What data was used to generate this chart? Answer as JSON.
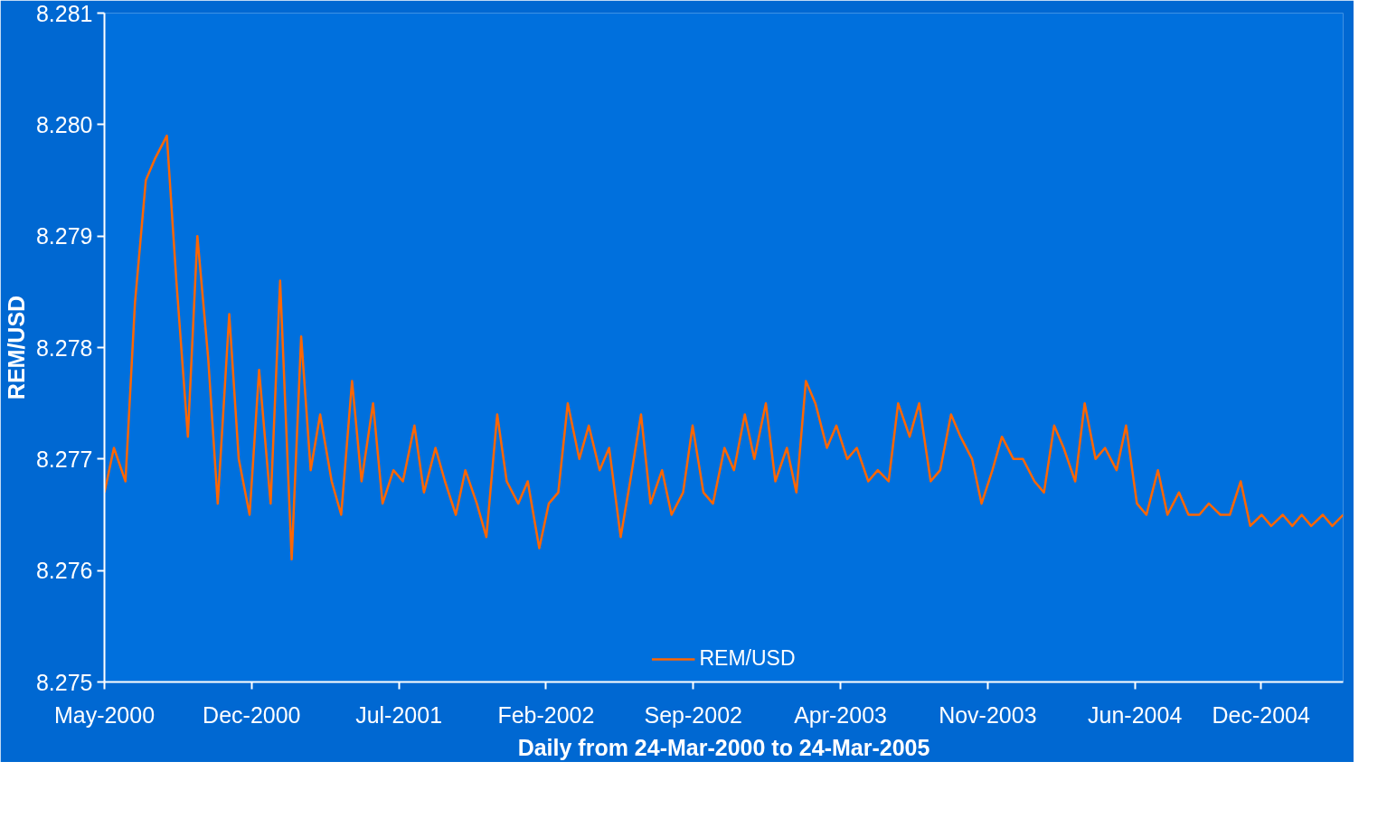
{
  "chart_data": {
    "type": "line",
    "xlabel": "Daily from 24-Mar-2000 to 24-Mar-2005",
    "ylabel": "REM/USD",
    "x": [
      "2000-05-01",
      "2000-05-15",
      "2000-06-01",
      "2000-06-15",
      "2000-07-01",
      "2000-07-15",
      "2000-08-01",
      "2000-08-15",
      "2000-09-01",
      "2000-09-15",
      "2000-10-01",
      "2000-10-15",
      "2000-11-01",
      "2000-11-15",
      "2000-12-01",
      "2000-12-15",
      "2001-01-01",
      "2001-01-15",
      "2001-02-01",
      "2001-02-15",
      "2001-03-01",
      "2001-03-15",
      "2001-04-01",
      "2001-04-15",
      "2001-05-01",
      "2001-05-15",
      "2001-06-01",
      "2001-06-15",
      "2001-07-01",
      "2001-07-15",
      "2001-08-01",
      "2001-08-15",
      "2001-09-01",
      "2001-09-15",
      "2001-10-01",
      "2001-10-15",
      "2001-11-01",
      "2001-11-15",
      "2001-12-01",
      "2001-12-15",
      "2002-01-01",
      "2002-01-15",
      "2002-02-01",
      "2002-02-15",
      "2002-03-01",
      "2002-03-15",
      "2002-04-01",
      "2002-04-15",
      "2002-05-01",
      "2002-05-15",
      "2002-06-01",
      "2002-06-15",
      "2002-07-01",
      "2002-07-15",
      "2002-08-01",
      "2002-08-15",
      "2002-09-01",
      "2002-09-15",
      "2002-10-01",
      "2002-10-15",
      "2002-11-01",
      "2002-11-15",
      "2002-12-01",
      "2002-12-15",
      "2003-01-01",
      "2003-01-15",
      "2003-02-01",
      "2003-02-15",
      "2003-03-01",
      "2003-03-15",
      "2003-04-01",
      "2003-04-15",
      "2003-05-01",
      "2003-05-15",
      "2003-06-01",
      "2003-06-15",
      "2003-07-01",
      "2003-07-15",
      "2003-08-01",
      "2003-08-15",
      "2003-09-01",
      "2003-09-15",
      "2003-10-01",
      "2003-10-15",
      "2003-11-01",
      "2003-11-15",
      "2003-12-01",
      "2003-12-15",
      "2004-01-01",
      "2004-01-15",
      "2004-02-01",
      "2004-02-15",
      "2004-03-01",
      "2004-03-15",
      "2004-04-01",
      "2004-04-15",
      "2004-05-01",
      "2004-05-15",
      "2004-06-01",
      "2004-06-15",
      "2004-07-01",
      "2004-07-15",
      "2004-08-01",
      "2004-08-15",
      "2004-09-01",
      "2004-09-15",
      "2004-10-01",
      "2004-10-15",
      "2004-11-01",
      "2004-11-15",
      "2004-12-01",
      "2004-12-15",
      "2005-01-01",
      "2005-01-15",
      "2005-02-01",
      "2005-02-15",
      "2005-03-01",
      "2005-03-15",
      "2005-04-01",
      "2005-04-15",
      "2005-05-01"
    ],
    "series": [
      {
        "name": "REM/USD",
        "color": "#ff6600",
        "values": [
          8.2767,
          8.2771,
          8.2768,
          8.2784,
          8.2795,
          8.2797,
          8.2799,
          8.2786,
          8.2772,
          8.279,
          8.2779,
          8.2766,
          8.2783,
          8.277,
          8.2765,
          8.2778,
          8.2766,
          8.2786,
          8.2761,
          8.2781,
          8.2769,
          8.2774,
          8.2768,
          8.2765,
          8.2777,
          8.2768,
          8.2775,
          8.2766,
          8.2769,
          8.2768,
          8.2773,
          8.2767,
          8.2771,
          8.2768,
          8.2765,
          8.2769,
          8.2766,
          8.2763,
          8.2774,
          8.2768,
          8.2766,
          8.2768,
          8.2762,
          8.2766,
          8.2767,
          8.2775,
          8.277,
          8.2773,
          8.2769,
          8.2771,
          8.2763,
          8.2768,
          8.2774,
          8.2766,
          8.2769,
          8.2765,
          8.2767,
          8.2773,
          8.2767,
          8.2766,
          8.2771,
          8.2769,
          8.2774,
          8.277,
          8.2775,
          8.2768,
          8.2771,
          8.2767,
          8.2777,
          8.2775,
          8.2771,
          8.2773,
          8.277,
          8.2771,
          8.2768,
          8.2769,
          8.2768,
          8.2775,
          8.2772,
          8.2775,
          8.2768,
          8.2769,
          8.2774,
          8.2772,
          8.277,
          8.2766,
          8.2769,
          8.2772,
          8.277,
          8.277,
          8.2768,
          8.2767,
          8.2773,
          8.2771,
          8.2768,
          8.2775,
          8.277,
          8.2771,
          8.2769,
          8.2773,
          8.2766,
          8.2765,
          8.2769,
          8.2765,
          8.2767,
          8.2765,
          8.2765,
          8.2766,
          8.2765,
          8.2765,
          8.2768,
          8.2764,
          8.2765,
          8.2764,
          8.2765,
          8.2764,
          8.2765,
          8.2764,
          8.2765,
          8.2764,
          8.2765
        ]
      }
    ],
    "xlim": [
      "2000-05-01",
      "2005-05-01"
    ],
    "xticks": [
      {
        "value": "2000-05-01",
        "label": "May-2000"
      },
      {
        "value": "2000-12-04",
        "label": "Dec-2000"
      },
      {
        "value": "2001-07-09",
        "label": "Jul-2001"
      },
      {
        "value": "2002-02-11",
        "label": "Feb-2002"
      },
      {
        "value": "2002-09-16",
        "label": "Sep-2002"
      },
      {
        "value": "2003-04-21",
        "label": "Apr-2003"
      },
      {
        "value": "2003-11-24",
        "label": "Nov-2003"
      },
      {
        "value": "2004-06-28",
        "label": "Jun-2004"
      },
      {
        "value": "2004-12-31",
        "label": "Dec-2004"
      }
    ],
    "ylim": [
      8.275,
      8.281
    ],
    "yticks": [
      8.275,
      8.276,
      8.277,
      8.278,
      8.279,
      {
        "value": 8.28,
        "label": "8.280"
      },
      8.281
    ],
    "grid": false,
    "legend": "bottom",
    "marker": "none",
    "line_style": "solid"
  }
}
